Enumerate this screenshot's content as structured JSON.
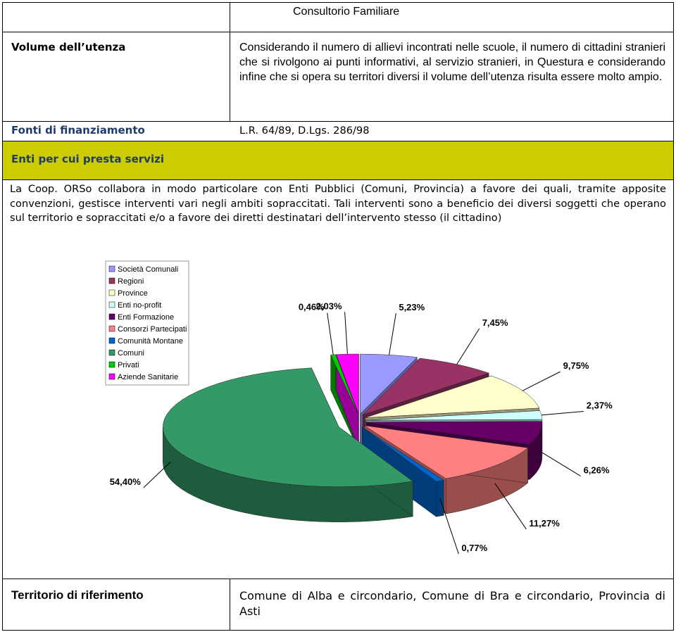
{
  "header": {
    "title": "Consultorio Familiare"
  },
  "rows": [
    {
      "label": "Volume dell’utenza",
      "text": "Considerando il numero di allievi incontrati nelle scuole, il numero di cittadini stranieri che si rivolgono ai punti informativi, al servizio stranieri, in Questura e considerando infine che si opera su territori diversi il volume dell’utenza risulta essere molto ampio."
    },
    {
      "label": "Fonti di finanziamento",
      "text": "L.R. 64/89, D.Lgs. 286/98"
    },
    {
      "label": "Enti per cui presta servizi",
      "text": "La Coop. ORSo collabora in modo particolare con Enti Pubblici (Comuni, Provincia) a favore dei quali, tramite apposite convenzioni, gestisce interventi vari negli ambiti sopraccitati. Tali interventi sono a beneficio dei diversi soggetti che operano sul territorio e sopraccitati e/o a favore dei diretti destinatari dell’intervento stesso (il cittadino)"
    },
    {
      "label": "Territorio di riferimento",
      "text": "Comune di Alba e circondario, Comune di Bra e circondario, Provincia di Asti"
    }
  ],
  "chart_data": {
    "type": "pie",
    "categories": [
      "Società Comunali",
      "Regioni",
      "Province",
      "Enti no-profit",
      "Enti Formazione",
      "Consorzi Partecipati",
      "Comunità Montane",
      "Comuni",
      "Privati",
      "Aziende Sanitarie"
    ],
    "series": [
      {
        "values": [
          5.23,
          7.45,
          9.75,
          2.37,
          6.26,
          11.27,
          0.77,
          54.4,
          0.46,
          2.03
        ],
        "value_labels": [
          "5,23%",
          "7,45%",
          "9,75%",
          "2,37%",
          "6,26%",
          "11,27%",
          "0,77%",
          "54,40%",
          "0,46%",
          "2,03%"
        ],
        "colors": [
          "#9999ff",
          "#993366",
          "#ffffcc",
          "#ccffff",
          "#660066",
          "#ff8080",
          "#0066cc",
          "#339966",
          "#00cc00",
          "#ff00ff"
        ]
      }
    ],
    "legend": "top-left"
  }
}
